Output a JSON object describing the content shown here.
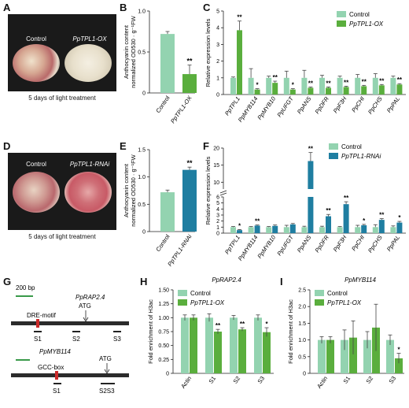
{
  "panel_letters": {
    "a": "A",
    "b": "B",
    "c": "C",
    "d": "D",
    "e": "E",
    "f": "F",
    "g": "G",
    "h": "H",
    "i": "I"
  },
  "photos": {
    "a": {
      "left": "Control",
      "right": "PpTPL1-OX",
      "caption": "5 days of light treatment"
    },
    "d": {
      "left": "Control",
      "right": "PpTPL1-RNAi",
      "caption": "5 days of light treatment"
    }
  },
  "colors": {
    "control": "#93d3b0",
    "ox": "#5aae3d",
    "rnai": "#1f7ea1",
    "error": "#444444"
  },
  "diagram": {
    "scale_label": "200 bp",
    "rap": {
      "gene": "PpRAP2.4",
      "motif": "DRE-motif",
      "atg": "ATG",
      "sites": [
        "S1",
        "S2",
        "S3"
      ]
    },
    "myb": {
      "gene": "PpMYB114",
      "motif": "GCC-box",
      "atg": "ATG",
      "sites": [
        "S1",
        "S2S3"
      ]
    }
  },
  "chart_data": [
    {
      "id": "B",
      "type": "bar",
      "categories": [
        "Control",
        "PpTPL1-OX"
      ],
      "values": [
        0.72,
        0.23
      ],
      "errors": [
        0.03,
        0.11
      ],
      "ylabel": "Anthocyanin content\nnormalized OD530 · g⁻¹FW",
      "ylim": [
        0,
        1.0
      ],
      "yticks": [
        0,
        0.5,
        1.0
      ],
      "significance": [
        "",
        "**"
      ],
      "colors": [
        "#93d3b0",
        "#5aae3d"
      ]
    },
    {
      "id": "C",
      "type": "bar",
      "categories": [
        "PpTPL1",
        "PpMYB114",
        "PpMYB10",
        "PpUFGT",
        "PpANS",
        "PpDFR",
        "PpF3H",
        "PpCHI",
        "PpCHS",
        "PpPAL"
      ],
      "series": [
        {
          "name": "Control",
          "values": [
            1,
            1,
            1,
            1,
            1,
            1,
            1,
            1,
            1,
            1
          ],
          "errors": [
            0.05,
            0.55,
            0.1,
            0.4,
            0.45,
            0.15,
            0.1,
            0.2,
            0.25,
            0.1
          ]
        },
        {
          "name": "PpTPL1-OX",
          "values": [
            3.85,
            0.3,
            0.7,
            0.3,
            0.4,
            0.4,
            0.45,
            0.5,
            0.55,
            0.6
          ],
          "errors": [
            0.55,
            0.05,
            0.1,
            0.05,
            0.05,
            0.05,
            0.05,
            0.05,
            0.05,
            0.05
          ]
        }
      ],
      "significance": [
        "**",
        "*",
        "**",
        "*",
        "**",
        "**",
        "**",
        "**",
        "**",
        "**"
      ],
      "ylabel": "Relative expression levels",
      "ylim": [
        0,
        5
      ],
      "yticks": [
        0,
        1,
        2,
        3,
        4,
        5
      ],
      "legend": "top-right"
    },
    {
      "id": "E",
      "type": "bar",
      "categories": [
        "Control",
        "PpTPL1-RNAi"
      ],
      "values": [
        0.72,
        1.13
      ],
      "errors": [
        0.04,
        0.05
      ],
      "ylabel": "Anthocyanin content\nnormalized OD530 · g⁻¹FW",
      "ylim": [
        0,
        1.5
      ],
      "yticks": [
        0,
        0.5,
        1.0,
        1.5
      ],
      "significance": [
        "",
        "**"
      ],
      "colors": [
        "#93d3b0",
        "#1f7ea1"
      ]
    },
    {
      "id": "F",
      "type": "bar",
      "categories": [
        "PpTPL1",
        "PpMYB114",
        "PpMYB10",
        "PpUFGT",
        "PpANS",
        "PpDFR",
        "PpF3H",
        "PpCHI",
        "PpCHS",
        "PpPAL"
      ],
      "series": [
        {
          "name": "Control",
          "values": [
            1,
            1,
            1,
            1,
            1,
            1,
            1,
            1,
            1,
            1
          ],
          "errors": [
            0.1,
            0.1,
            0.1,
            0.3,
            0.15,
            0.15,
            0.1,
            0.3,
            0.4,
            0.2
          ]
        },
        {
          "name": "PpTPL1-RNAi",
          "values": [
            0.5,
            1.25,
            1.2,
            1.45,
            16.2,
            2.8,
            4.8,
            1.3,
            2.2,
            1.75
          ],
          "errors": [
            0.1,
            0.1,
            0.15,
            0.15,
            2.5,
            0.3,
            0.4,
            0.15,
            0.2,
            0.2
          ]
        }
      ],
      "significance": [
        "*",
        "**",
        "",
        "",
        "**",
        "**",
        "**",
        "*",
        "**",
        "*"
      ],
      "ylabel": "Relative expression levels",
      "yticks_lower": [
        0,
        1,
        2,
        3,
        4,
        5,
        6
      ],
      "yticks_upper": [
        10,
        15,
        20
      ],
      "axis_break": [
        6,
        8
      ],
      "legend": "top-right"
    },
    {
      "id": "H",
      "type": "bar",
      "title": "PpRAP2.4",
      "categories": [
        "Actin",
        "S1",
        "S2",
        "S3"
      ],
      "series": [
        {
          "name": "Control",
          "values": [
            1.0,
            1.0,
            1.0,
            1.0
          ],
          "errors": [
            0.05,
            0.07,
            0.04,
            0.05
          ]
        },
        {
          "name": "PpTPL1-OX",
          "values": [
            1.0,
            0.75,
            0.79,
            0.74
          ],
          "errors": [
            0.05,
            0.04,
            0.03,
            0.08
          ]
        }
      ],
      "significance": [
        "",
        "**",
        "**",
        "*"
      ],
      "ylabel": "Fold enrichment of H3ac",
      "ylim": [
        0,
        1.5
      ],
      "yticks": [
        0,
        0.25,
        0.5,
        0.75,
        1.0,
        1.25,
        1.5
      ],
      "legend": "top-right"
    },
    {
      "id": "I",
      "type": "bar",
      "title": "PpMYB114",
      "categories": [
        "Actin",
        "S1",
        "S2",
        "S3"
      ],
      "series": [
        {
          "name": "Control",
          "values": [
            1.0,
            1.0,
            1.0,
            1.0
          ],
          "errors": [
            0.1,
            0.3,
            0.25,
            0.15
          ]
        },
        {
          "name": "PpTPL1-OX",
          "values": [
            1.0,
            1.07,
            1.37,
            0.45
          ],
          "errors": [
            0.1,
            0.5,
            0.7,
            0.15
          ]
        }
      ],
      "significance": [
        "",
        "",
        "",
        "*"
      ],
      "ylabel": "Fold enrichment of H3ac",
      "ylim": [
        0,
        2.5
      ],
      "yticks": [
        0,
        0.5,
        1.0,
        1.5,
        2.0,
        2.5
      ],
      "legend": "top-right"
    }
  ]
}
